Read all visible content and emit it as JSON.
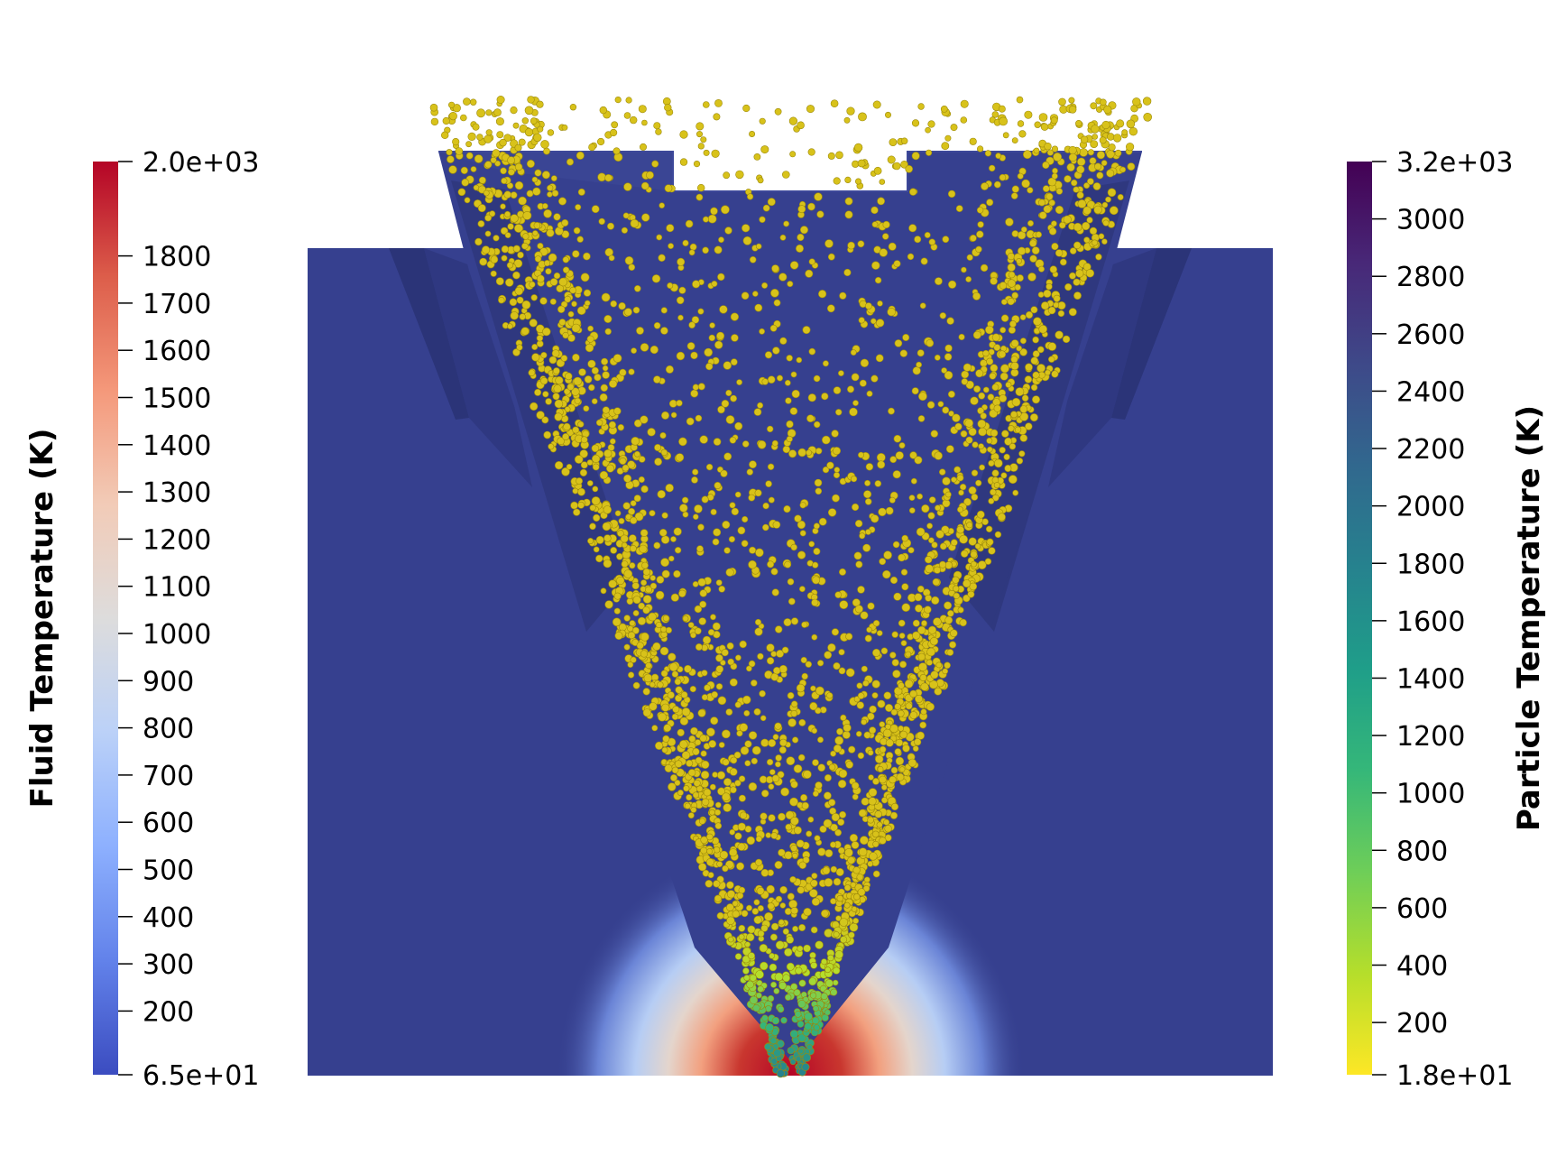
{
  "fluid_colorbar": {
    "title": "Fluid Temperature (K)",
    "range": [
      65,
      2000
    ],
    "colors": [
      "#b40426",
      "#dc5d4a",
      "#f4987a",
      "#f2cbb7",
      "#dddcdc",
      "#bbd1f8",
      "#8db0fe",
      "#6282ea",
      "#3b4cc0"
    ],
    "ticks": [
      {
        "value": 2000,
        "label": "2.0e+03"
      },
      {
        "value": 1800,
        "label": "1800"
      },
      {
        "value": 1700,
        "label": "1700"
      },
      {
        "value": 1600,
        "label": "1600"
      },
      {
        "value": 1500,
        "label": "1500"
      },
      {
        "value": 1400,
        "label": "1400"
      },
      {
        "value": 1300,
        "label": "1300"
      },
      {
        "value": 1200,
        "label": "1200"
      },
      {
        "value": 1100,
        "label": "1100"
      },
      {
        "value": 1000,
        "label": "1000"
      },
      {
        "value": 900,
        "label": "900"
      },
      {
        "value": 800,
        "label": "800"
      },
      {
        "value": 700,
        "label": "700"
      },
      {
        "value": 600,
        "label": "600"
      },
      {
        "value": 500,
        "label": "500"
      },
      {
        "value": 400,
        "label": "400"
      },
      {
        "value": 300,
        "label": "300"
      },
      {
        "value": 200,
        "label": "200"
      },
      {
        "value": 65,
        "label": "6.5e+01"
      }
    ]
  },
  "particle_colorbar": {
    "title": "Particle Temperature (K)",
    "range": [
      18,
      3200
    ],
    "colors": [
      "#440154",
      "#482878",
      "#3e4989",
      "#31688e",
      "#26828e",
      "#1f9e89",
      "#35b779",
      "#6ece58",
      "#b5de2b",
      "#fde725"
    ],
    "ticks": [
      {
        "value": 3200,
        "label": "3.2e+03"
      },
      {
        "value": 3000,
        "label": "3000"
      },
      {
        "value": 2800,
        "label": "2800"
      },
      {
        "value": 2600,
        "label": "2600"
      },
      {
        "value": 2400,
        "label": "2400"
      },
      {
        "value": 2200,
        "label": "2200"
      },
      {
        "value": 2000,
        "label": "2000"
      },
      {
        "value": 1800,
        "label": "1800"
      },
      {
        "value": 1600,
        "label": "1600"
      },
      {
        "value": 1400,
        "label": "1400"
      },
      {
        "value": 1200,
        "label": "1200"
      },
      {
        "value": 1000,
        "label": "1000"
      },
      {
        "value": 800,
        "label": "800"
      },
      {
        "value": 600,
        "label": "600"
      },
      {
        "value": 400,
        "label": "400"
      },
      {
        "value": 200,
        "label": "200"
      },
      {
        "value": 18,
        "label": "1.8e+01"
      }
    ]
  },
  "scene": {
    "domain_color": "#36408f",
    "wall_shadow_color": "#262d68",
    "particle_color": "#d8c21a",
    "particle_edge_color": "#9c8a0c",
    "hot_zone_color": "#b40426"
  }
}
